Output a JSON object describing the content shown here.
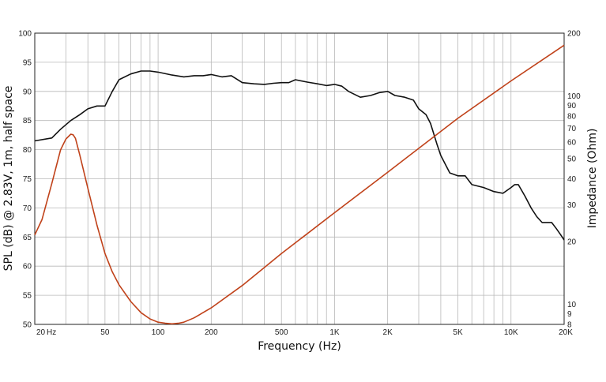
{
  "chart_data": {
    "type": "line",
    "xlabel": "Frequency (Hz)",
    "ylabel": "SPL (dB) @ 2.83V, 1m, half space",
    "y2label": "Impedance (Ohm)",
    "xscale": "log",
    "xlim": [
      20,
      20000
    ],
    "ylim": [
      50,
      100
    ],
    "y2lim": [
      8,
      200
    ],
    "y2scale": "log",
    "grid": true,
    "x_ticks": [
      {
        "value": 20,
        "label": "20"
      },
      {
        "value": 50,
        "label": "50"
      },
      {
        "value": 100,
        "label": "100"
      },
      {
        "value": 200,
        "label": "200"
      },
      {
        "value": 500,
        "label": "500"
      },
      {
        "value": 1000,
        "label": "1K"
      },
      {
        "value": 2000,
        "label": "2K"
      },
      {
        "value": 5000,
        "label": "5K"
      },
      {
        "value": 10000,
        "label": "10K"
      },
      {
        "value": 20000,
        "label": "20K"
      }
    ],
    "x_unit_label": "Hz",
    "y_ticks": [
      {
        "value": 50,
        "label": "50"
      },
      {
        "value": 55,
        "label": "55"
      },
      {
        "value": 60,
        "label": "60"
      },
      {
        "value": 65,
        "label": "65"
      },
      {
        "value": 70,
        "label": "70"
      },
      {
        "value": 75,
        "label": "75"
      },
      {
        "value": 80,
        "label": "80"
      },
      {
        "value": 85,
        "label": "85"
      },
      {
        "value": 90,
        "label": "90"
      },
      {
        "value": 95,
        "label": "95"
      },
      {
        "value": 100,
        "label": "100"
      }
    ],
    "y2_ticks": [
      {
        "value": 8,
        "label": "8"
      },
      {
        "value": 9,
        "label": "9"
      },
      {
        "value": 10,
        "label": "10"
      },
      {
        "value": 20,
        "label": "20"
      },
      {
        "value": 30,
        "label": "30"
      },
      {
        "value": 40,
        "label": "40"
      },
      {
        "value": 50,
        "label": "50"
      },
      {
        "value": 60,
        "label": "60"
      },
      {
        "value": 70,
        "label": "70"
      },
      {
        "value": 80,
        "label": "80"
      },
      {
        "value": 90,
        "label": "90"
      },
      {
        "value": 100,
        "label": "100"
      },
      {
        "value": 200,
        "label": "200"
      }
    ],
    "series": [
      {
        "axis": "left",
        "color": "#111111",
        "x": [
          20,
          25,
          28,
          32,
          36,
          40,
          45,
          50,
          55,
          60,
          70,
          80,
          90,
          100,
          120,
          140,
          160,
          180,
          200,
          230,
          260,
          300,
          350,
          400,
          450,
          500,
          550,
          600,
          700,
          800,
          900,
          1000,
          1100,
          1200,
          1400,
          1600,
          1800,
          2000,
          2200,
          2500,
          2800,
          3000,
          3300,
          3500,
          3800,
          4000,
          4500,
          5000,
          5500,
          6000,
          7000,
          8000,
          9000,
          10000,
          10500,
          11000,
          12000,
          13000,
          14000,
          15000,
          16000,
          17000,
          18000,
          19000,
          20000
        ],
        "y": [
          81.5,
          82.0,
          83.5,
          85.0,
          86.0,
          87.0,
          87.5,
          87.5,
          90.0,
          92.0,
          93.0,
          93.5,
          93.5,
          93.3,
          92.8,
          92.5,
          92.7,
          92.7,
          92.9,
          92.5,
          92.7,
          91.5,
          91.3,
          91.2,
          91.4,
          91.5,
          91.5,
          92.0,
          91.6,
          91.3,
          91.0,
          91.2,
          90.9,
          90.0,
          89.0,
          89.3,
          89.8,
          90.0,
          89.3,
          89.0,
          88.5,
          87.0,
          86.0,
          84.5,
          81.0,
          79.0,
          76.0,
          75.5,
          75.5,
          74.0,
          73.5,
          72.8,
          72.5,
          73.5,
          74.0,
          74.0,
          72.0,
          70.0,
          68.5,
          67.5,
          67.5,
          67.5,
          66.5,
          65.5,
          64.5
        ]
      },
      {
        "axis": "right",
        "color": "#c0421a",
        "x": [
          20,
          22,
          25,
          28,
          30,
          32,
          33,
          34,
          36,
          40,
          45,
          50,
          55,
          60,
          70,
          80,
          90,
          100,
          110,
          120,
          130,
          140,
          160,
          200,
          300,
          500,
          1000,
          2000,
          5000,
          10000,
          20000
        ],
        "y": [
          21.5,
          25.5,
          38,
          55,
          62,
          65.5,
          65,
          62.5,
          52,
          36,
          24,
          17.5,
          14.3,
          12.4,
          10.3,
          9.1,
          8.5,
          8.2,
          8.1,
          8.05,
          8.1,
          8.2,
          8.6,
          9.6,
          12.3,
          17.5,
          27.5,
          43,
          78,
          118,
          175
        ]
      }
    ]
  }
}
